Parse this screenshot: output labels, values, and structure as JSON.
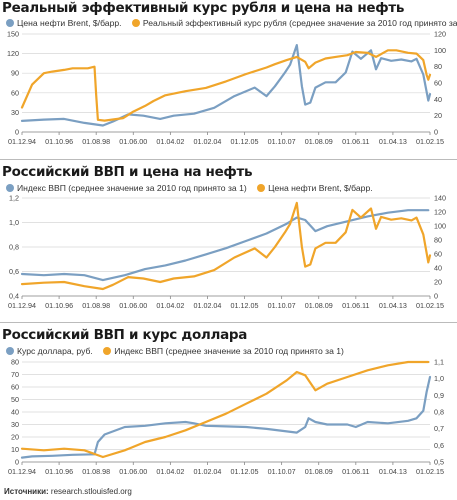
{
  "colors": {
    "blue": "#7b9fc2",
    "orange": "#f0a52a",
    "grid": "#d7d7d7",
    "axis": "#888888"
  },
  "source_label": "Источники:",
  "source_text": "research.stlouisfed.org",
  "chart_data": [
    {
      "type": "line",
      "title": "Реальный эффективный курс рубля и цена на нефть",
      "x_ticks": [
        "01.12.94",
        "01.10.96",
        "01.08.98",
        "01.06.00",
        "01.04.02",
        "01.02.04",
        "01.12.05",
        "01.10.07",
        "01.08.09",
        "01.06.11",
        "01.04.13",
        "01.02.15"
      ],
      "x_range": [
        "1994-12",
        "2015-02"
      ],
      "y_left": {
        "ticks": [
          0,
          30,
          60,
          90,
          120,
          150
        ],
        "range": [
          0,
          150
        ]
      },
      "y_right": {
        "ticks": [
          0,
          20,
          40,
          60,
          80,
          100,
          120
        ],
        "range": [
          0,
          120
        ]
      },
      "series": [
        {
          "name": "Цена нефти Brent, $/барр.",
          "color": "blue",
          "axis": "left",
          "x": [
            "1994-12",
            "1996-01",
            "1997-01",
            "1998-01",
            "1998-12",
            "1999-06",
            "2000-03",
            "2000-12",
            "2001-10",
            "2002-06",
            "2003-06",
            "2004-06",
            "2005-06",
            "2006-06",
            "2007-01",
            "2007-06",
            "2007-12",
            "2008-03",
            "2008-07",
            "2008-10",
            "2008-12",
            "2009-03",
            "2009-06",
            "2009-12",
            "2010-06",
            "2010-12",
            "2011-04",
            "2011-09",
            "2012-03",
            "2012-06",
            "2012-09",
            "2013-03",
            "2013-09",
            "2014-03",
            "2014-06",
            "2014-10",
            "2015-01",
            "2015-02"
          ],
          "y": [
            17,
            19,
            20,
            14,
            10,
            16,
            27,
            25,
            20,
            25,
            28,
            37,
            55,
            68,
            55,
            70,
            91,
            103,
            133,
            70,
            42,
            45,
            68,
            76,
            76,
            91,
            123,
            112,
            125,
            96,
            113,
            109,
            111,
            108,
            112,
            88,
            48,
            58
          ]
        },
        {
          "name": "Реальный эффективный курс рубля (среднее значение за 2010 год принято за 100)",
          "color": "orange",
          "axis": "right",
          "x": [
            "1994-12",
            "1995-06",
            "1996-01",
            "1996-06",
            "1997-01",
            "1997-06",
            "1998-03",
            "1998-07",
            "1998-08",
            "1998-09",
            "1999-01",
            "1999-12",
            "2000-06",
            "2001-01",
            "2001-06",
            "2002-01",
            "2003-01",
            "2004-01",
            "2005-01",
            "2006-01",
            "2007-01",
            "2007-06",
            "2008-01",
            "2008-07",
            "2008-12",
            "2009-02",
            "2009-06",
            "2009-12",
            "2010-06",
            "2011-01",
            "2011-06",
            "2012-01",
            "2012-06",
            "2013-01",
            "2013-06",
            "2014-01",
            "2014-06",
            "2014-10",
            "2014-12",
            "2015-01",
            "2015-02"
          ],
          "y": [
            30,
            58,
            72,
            74,
            76,
            78,
            78,
            80,
            45,
            15,
            14,
            17,
            25,
            32,
            38,
            45,
            50,
            54,
            62,
            71,
            79,
            83,
            88,
            92,
            86,
            78,
            85,
            90,
            92,
            94,
            98,
            97,
            92,
            100,
            100,
            97,
            96,
            88,
            70,
            64,
            70
          ]
        }
      ]
    },
    {
      "type": "line",
      "title": "Российский ВВП и цена на нефть",
      "x_ticks": [
        "01.12.94",
        "01.10.96",
        "01.08.98",
        "01.06.00",
        "01.04.02",
        "01.02.04",
        "01.12.05",
        "01.10.07",
        "01.08.09",
        "01.06.11",
        "01.04.13",
        "01.02.15"
      ],
      "x_range": [
        "1994-12",
        "2015-02"
      ],
      "y_left": {
        "ticks": [
          "0,4",
          "0,6",
          "0,8",
          "1,0",
          "1,2"
        ],
        "range": [
          0.4,
          1.2
        ],
        "values": [
          0.4,
          0.6,
          0.8,
          1.0,
          1.2
        ]
      },
      "y_right": {
        "ticks": [
          0,
          20,
          40,
          60,
          80,
          100,
          120,
          140
        ],
        "range": [
          0,
          140
        ]
      },
      "series": [
        {
          "name": "Индекс ВВП (среднее значение за 2010 год принято за 1)",
          "color": "blue",
          "axis": "left",
          "x": [
            "1994-12",
            "1996-01",
            "1997-01",
            "1998-01",
            "1998-12",
            "2000-01",
            "2001-01",
            "2002-01",
            "2003-01",
            "2004-01",
            "2005-01",
            "2006-01",
            "2007-01",
            "2008-01",
            "2008-07",
            "2008-12",
            "2009-06",
            "2010-01",
            "2011-01",
            "2012-01",
            "2013-01",
            "2014-01",
            "2014-06",
            "2015-01"
          ],
          "y": [
            0.58,
            0.57,
            0.58,
            0.57,
            0.53,
            0.57,
            0.62,
            0.65,
            0.69,
            0.74,
            0.79,
            0.85,
            0.91,
            0.99,
            1.04,
            1.02,
            0.93,
            0.97,
            1.01,
            1.05,
            1.08,
            1.1,
            1.1,
            1.1
          ]
        },
        {
          "name": "Цена нефти Brent, $/барр.",
          "color": "orange",
          "axis": "right",
          "x": [
            "1994-12",
            "1996-01",
            "1997-01",
            "1998-01",
            "1998-12",
            "1999-06",
            "2000-03",
            "2000-12",
            "2001-10",
            "2002-06",
            "2003-06",
            "2004-06",
            "2005-06",
            "2006-06",
            "2007-01",
            "2007-06",
            "2007-12",
            "2008-03",
            "2008-07",
            "2008-10",
            "2008-12",
            "2009-03",
            "2009-06",
            "2009-12",
            "2010-06",
            "2010-12",
            "2011-04",
            "2011-09",
            "2012-03",
            "2012-06",
            "2012-09",
            "2013-03",
            "2013-09",
            "2014-03",
            "2014-06",
            "2014-10",
            "2015-01",
            "2015-02"
          ],
          "y": [
            17,
            19,
            20,
            14,
            10,
            16,
            27,
            25,
            20,
            25,
            28,
            37,
            55,
            68,
            55,
            70,
            91,
            103,
            133,
            70,
            42,
            45,
            68,
            76,
            76,
            91,
            123,
            112,
            125,
            96,
            113,
            109,
            111,
            108,
            112,
            88,
            48,
            58
          ]
        }
      ]
    },
    {
      "type": "line",
      "title": "Российский ВВП и курс доллара",
      "x_ticks": [
        "01.12.94",
        "01.10.96",
        "01.08.98",
        "01.06.00",
        "01.04.02",
        "01.02.04",
        "01.12.05",
        "01.10.07",
        "01.08.09",
        "01.06.11",
        "01.04.13",
        "01.02.15"
      ],
      "x_range": [
        "1994-12",
        "2015-02"
      ],
      "y_left": {
        "ticks": [
          0,
          10,
          20,
          30,
          40,
          50,
          60,
          70,
          80
        ],
        "range": [
          0,
          80
        ]
      },
      "y_right": {
        "ticks": [
          "0,5",
          "0,6",
          "0,7",
          "0,8",
          "0,9",
          "1,0",
          "1,1"
        ],
        "range": [
          0.5,
          1.1
        ],
        "values": [
          0.5,
          0.6,
          0.7,
          0.8,
          0.9,
          1.0,
          1.1
        ]
      },
      "series": [
        {
          "name": "Курс доллара, руб.",
          "color": "blue",
          "axis": "left",
          "x": [
            "1994-12",
            "1995-06",
            "1996-06",
            "1997-06",
            "1998-07",
            "1998-09",
            "1999-01",
            "1999-06",
            "2000-01",
            "2001-01",
            "2002-01",
            "2003-01",
            "2003-06",
            "2004-01",
            "2005-01",
            "2006-01",
            "2007-01",
            "2008-01",
            "2008-07",
            "2008-12",
            "2009-02",
            "2009-06",
            "2010-01",
            "2011-01",
            "2011-06",
            "2012-01",
            "2013-01",
            "2014-01",
            "2014-06",
            "2014-10",
            "2014-12",
            "2015-02"
          ],
          "y": [
            3.5,
            4.5,
            5,
            5.8,
            6.2,
            16,
            22,
            24.5,
            28,
            29,
            31,
            32,
            31,
            29,
            28.5,
            28,
            26.5,
            24.5,
            23.5,
            28,
            35,
            32,
            30,
            30,
            28,
            32,
            31,
            33,
            35,
            41,
            56,
            68
          ]
        },
        {
          "name": "Индекс ВВП (среднее значение за 2010 год принято за 1)",
          "color": "orange",
          "axis": "right",
          "x": [
            "1994-12",
            "1996-01",
            "1997-01",
            "1998-01",
            "1998-12",
            "2000-01",
            "2001-01",
            "2002-01",
            "2003-01",
            "2004-01",
            "2005-01",
            "2006-01",
            "2007-01",
            "2008-01",
            "2008-07",
            "2008-12",
            "2009-06",
            "2010-01",
            "2011-01",
            "2012-01",
            "2013-01",
            "2014-01",
            "2014-06",
            "2015-01"
          ],
          "y": [
            0.58,
            0.57,
            0.58,
            0.57,
            0.53,
            0.57,
            0.62,
            0.65,
            0.69,
            0.74,
            0.79,
            0.85,
            0.91,
            0.99,
            1.04,
            1.02,
            0.93,
            0.97,
            1.01,
            1.05,
            1.08,
            1.1,
            1.1,
            1.1
          ]
        }
      ]
    }
  ]
}
